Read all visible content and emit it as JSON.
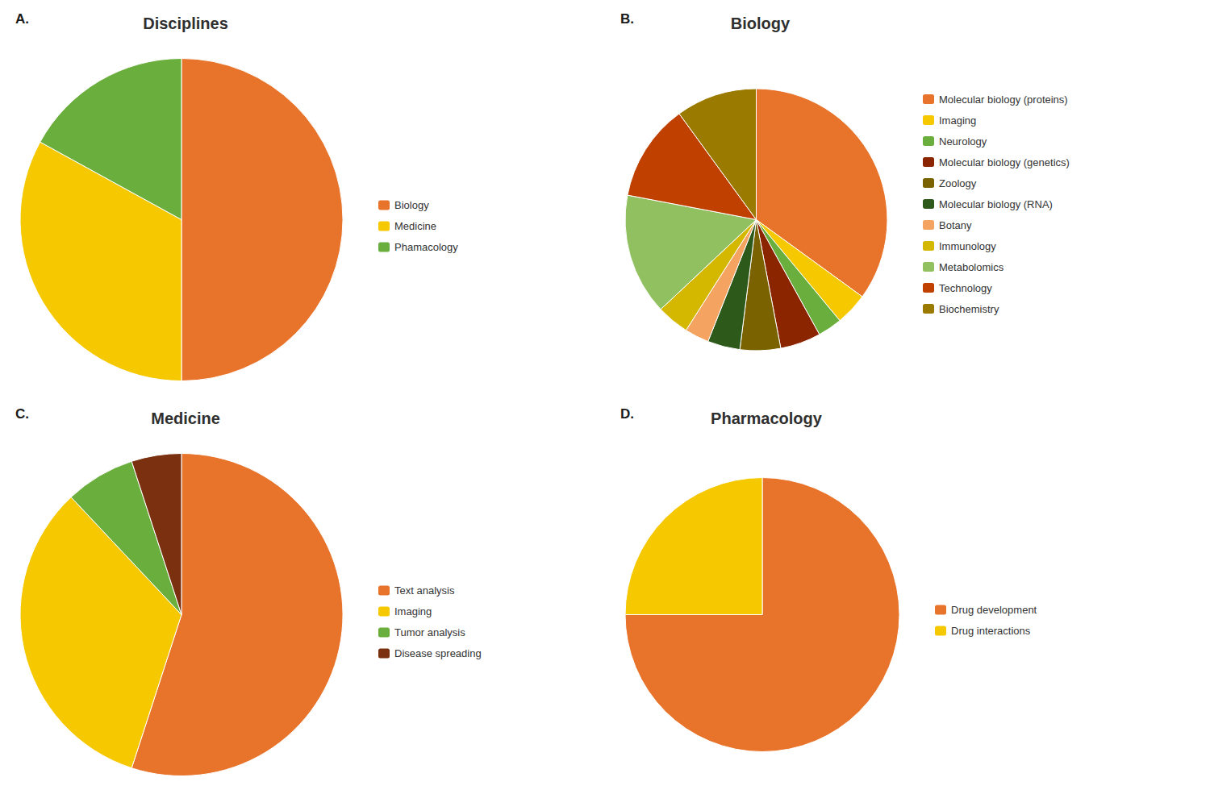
{
  "chart_data": [
    {
      "type": "pie",
      "title": "Disciplines",
      "annotations": [
        "A."
      ],
      "categories": [
        "Biology",
        "Medicine",
        "Phamacology"
      ],
      "values": [
        50,
        33,
        17
      ],
      "colors": [
        "#E8732A",
        "#F5C800",
        "#6AAF3D"
      ],
      "legend": "right"
    },
    {
      "type": "pie",
      "title": "Biology",
      "annotations": [
        "B."
      ],
      "categories": [
        "Molecular biology (proteins)",
        "Imaging",
        "Neurology",
        "Molecular biology (genetics)",
        "Zoology",
        "Molecular biology (RNA)",
        "Botany",
        "Immunology",
        "Metabolomics",
        "Technology",
        "Biochemistry"
      ],
      "values": [
        35,
        4,
        3,
        5,
        5,
        4,
        3,
        4,
        15,
        12,
        10
      ],
      "colors": [
        "#E8732A",
        "#F5C800",
        "#6AAF3D",
        "#8B2500",
        "#7A6200",
        "#2D5A1B",
        "#F4A460",
        "#D4B800",
        "#90C060",
        "#C04000",
        "#9B7A00"
      ],
      "legend": "right"
    },
    {
      "type": "pie",
      "title": "Medicine",
      "annotations": [
        "C."
      ],
      "categories": [
        "Text analysis",
        "Imaging",
        "Tumor analysis",
        "Disease spreading"
      ],
      "values": [
        55,
        33,
        7,
        5
      ],
      "colors": [
        "#E8732A",
        "#F5C800",
        "#6AAF3D",
        "#7B3010"
      ],
      "legend": "right"
    },
    {
      "type": "pie",
      "title": "Pharmacology",
      "annotations": [
        "D."
      ],
      "categories": [
        "Drug development",
        "Drug interactions"
      ],
      "values": [
        75,
        25
      ],
      "colors": [
        "#E8732A",
        "#F5C800"
      ],
      "legend": "right"
    }
  ]
}
